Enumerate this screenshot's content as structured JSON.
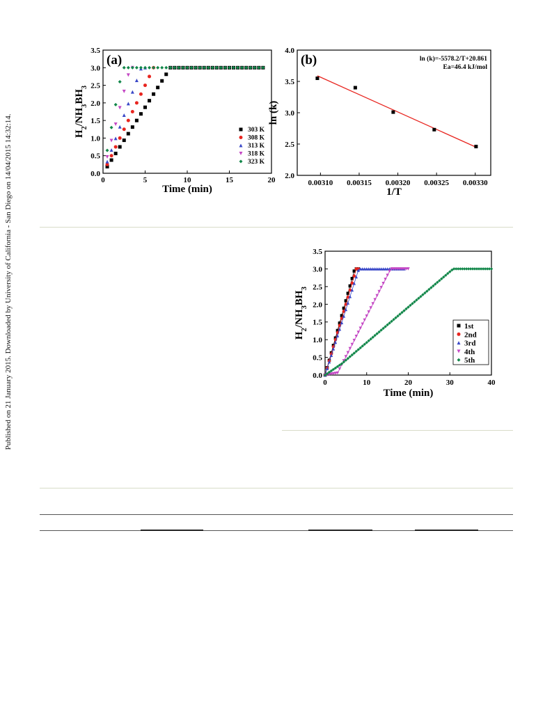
{
  "side_note": "Published on 21 January 2015. Downloaded by University of California - San Diego on 14/04/2015 14:32:14.",
  "chart_data": [
    {
      "type": "scatter",
      "panel_label": "(a)",
      "xlabel": "Time (min)",
      "ylabel": "H2/NH3BH3",
      "xlim": [
        0,
        20
      ],
      "ylim": [
        0,
        3.5
      ],
      "xticks": [
        0,
        5,
        10,
        15,
        20
      ],
      "yticks": [
        0.0,
        0.5,
        1.0,
        1.5,
        2.0,
        2.5,
        3.0,
        3.5
      ],
      "legend_position": "bottom-right",
      "series": [
        {
          "name": "303 K",
          "color": "#000000",
          "marker": "square",
          "rate": 0.375,
          "plateau": 3.0,
          "x_max": 19
        },
        {
          "name": "308 K",
          "color": "#e8251f",
          "marker": "circle",
          "rate": 0.5,
          "plateau": 3.0,
          "x_max": 6
        },
        {
          "name": "313 K",
          "color": "#3a48c8",
          "marker": "triangle-up",
          "rate": 0.66,
          "plateau": 3.0,
          "x_max": 5
        },
        {
          "name": "318 K",
          "color": "#c447c4",
          "marker": "triangle-down",
          "rate": 0.93,
          "plateau": 3.0,
          "x_max": 3.5
        },
        {
          "name": "323 K",
          "color": "#12874a",
          "marker": "diamond",
          "rate": 1.3,
          "plateau": 3.0,
          "x_max": 19
        }
      ]
    },
    {
      "type": "scatter",
      "panel_label": "(b)",
      "xlabel": "1/T",
      "ylabel": "ln (k)",
      "xlim": [
        0.00307,
        0.00332
      ],
      "ylim": [
        2.0,
        4.0
      ],
      "xticks": [
        "0.00310",
        "0.00315",
        "0.00320",
        "0.00325",
        "0.00330"
      ],
      "yticks": [
        "2.0",
        "2.5",
        "3.0",
        "3.5",
        "4.0"
      ],
      "annotations": [
        "ln (k)=-5578.2/T+20.861",
        "Ea=46.4 kJ/mol"
      ],
      "points": [
        {
          "x": 0.003096,
          "y": 3.55
        },
        {
          "x": 0.003145,
          "y": 3.4
        },
        {
          "x": 0.003194,
          "y": 3.01
        },
        {
          "x": 0.003247,
          "y": 2.73
        },
        {
          "x": 0.003301,
          "y": 2.46
        }
      ],
      "fit_line": {
        "x": [
          0.003096,
          0.003301
        ],
        "y": [
          3.59,
          2.45
        ],
        "color": "#e8251f"
      }
    },
    {
      "type": "line",
      "xlabel": "Time (min)",
      "ylabel": "H2/NH3BH3",
      "xlim": [
        0,
        40
      ],
      "ylim": [
        0,
        3.5
      ],
      "xticks": [
        0,
        10,
        20,
        30,
        40
      ],
      "yticks": [
        "0.0",
        "0.5",
        "1.0",
        "1.5",
        "2.0",
        "2.5",
        "3.0",
        "3.5"
      ],
      "legend_position": "bottom-right",
      "series": [
        {
          "name": "1st",
          "color": "#000000",
          "marker": "square",
          "rate": 0.42,
          "plateau": 3.0,
          "x_max": 8
        },
        {
          "name": "2nd",
          "color": "#e8251f",
          "marker": "circle",
          "rate": 0.4,
          "plateau": 3.0,
          "x_max": 8
        },
        {
          "name": "3rd",
          "color": "#3a48c8",
          "marker": "triangle-up",
          "rate": 0.37,
          "plateau": 3.0,
          "x_max": 19
        },
        {
          "name": "4th",
          "color": "#c447c4",
          "marker": "triangle-down",
          "rate": 0.23,
          "plateau": 3.0,
          "x_max": 20
        },
        {
          "name": "5th",
          "color": "#12874a",
          "marker": "diamond",
          "rate": 0.1,
          "plateau": 3.0,
          "x_max": 40
        }
      ]
    }
  ]
}
